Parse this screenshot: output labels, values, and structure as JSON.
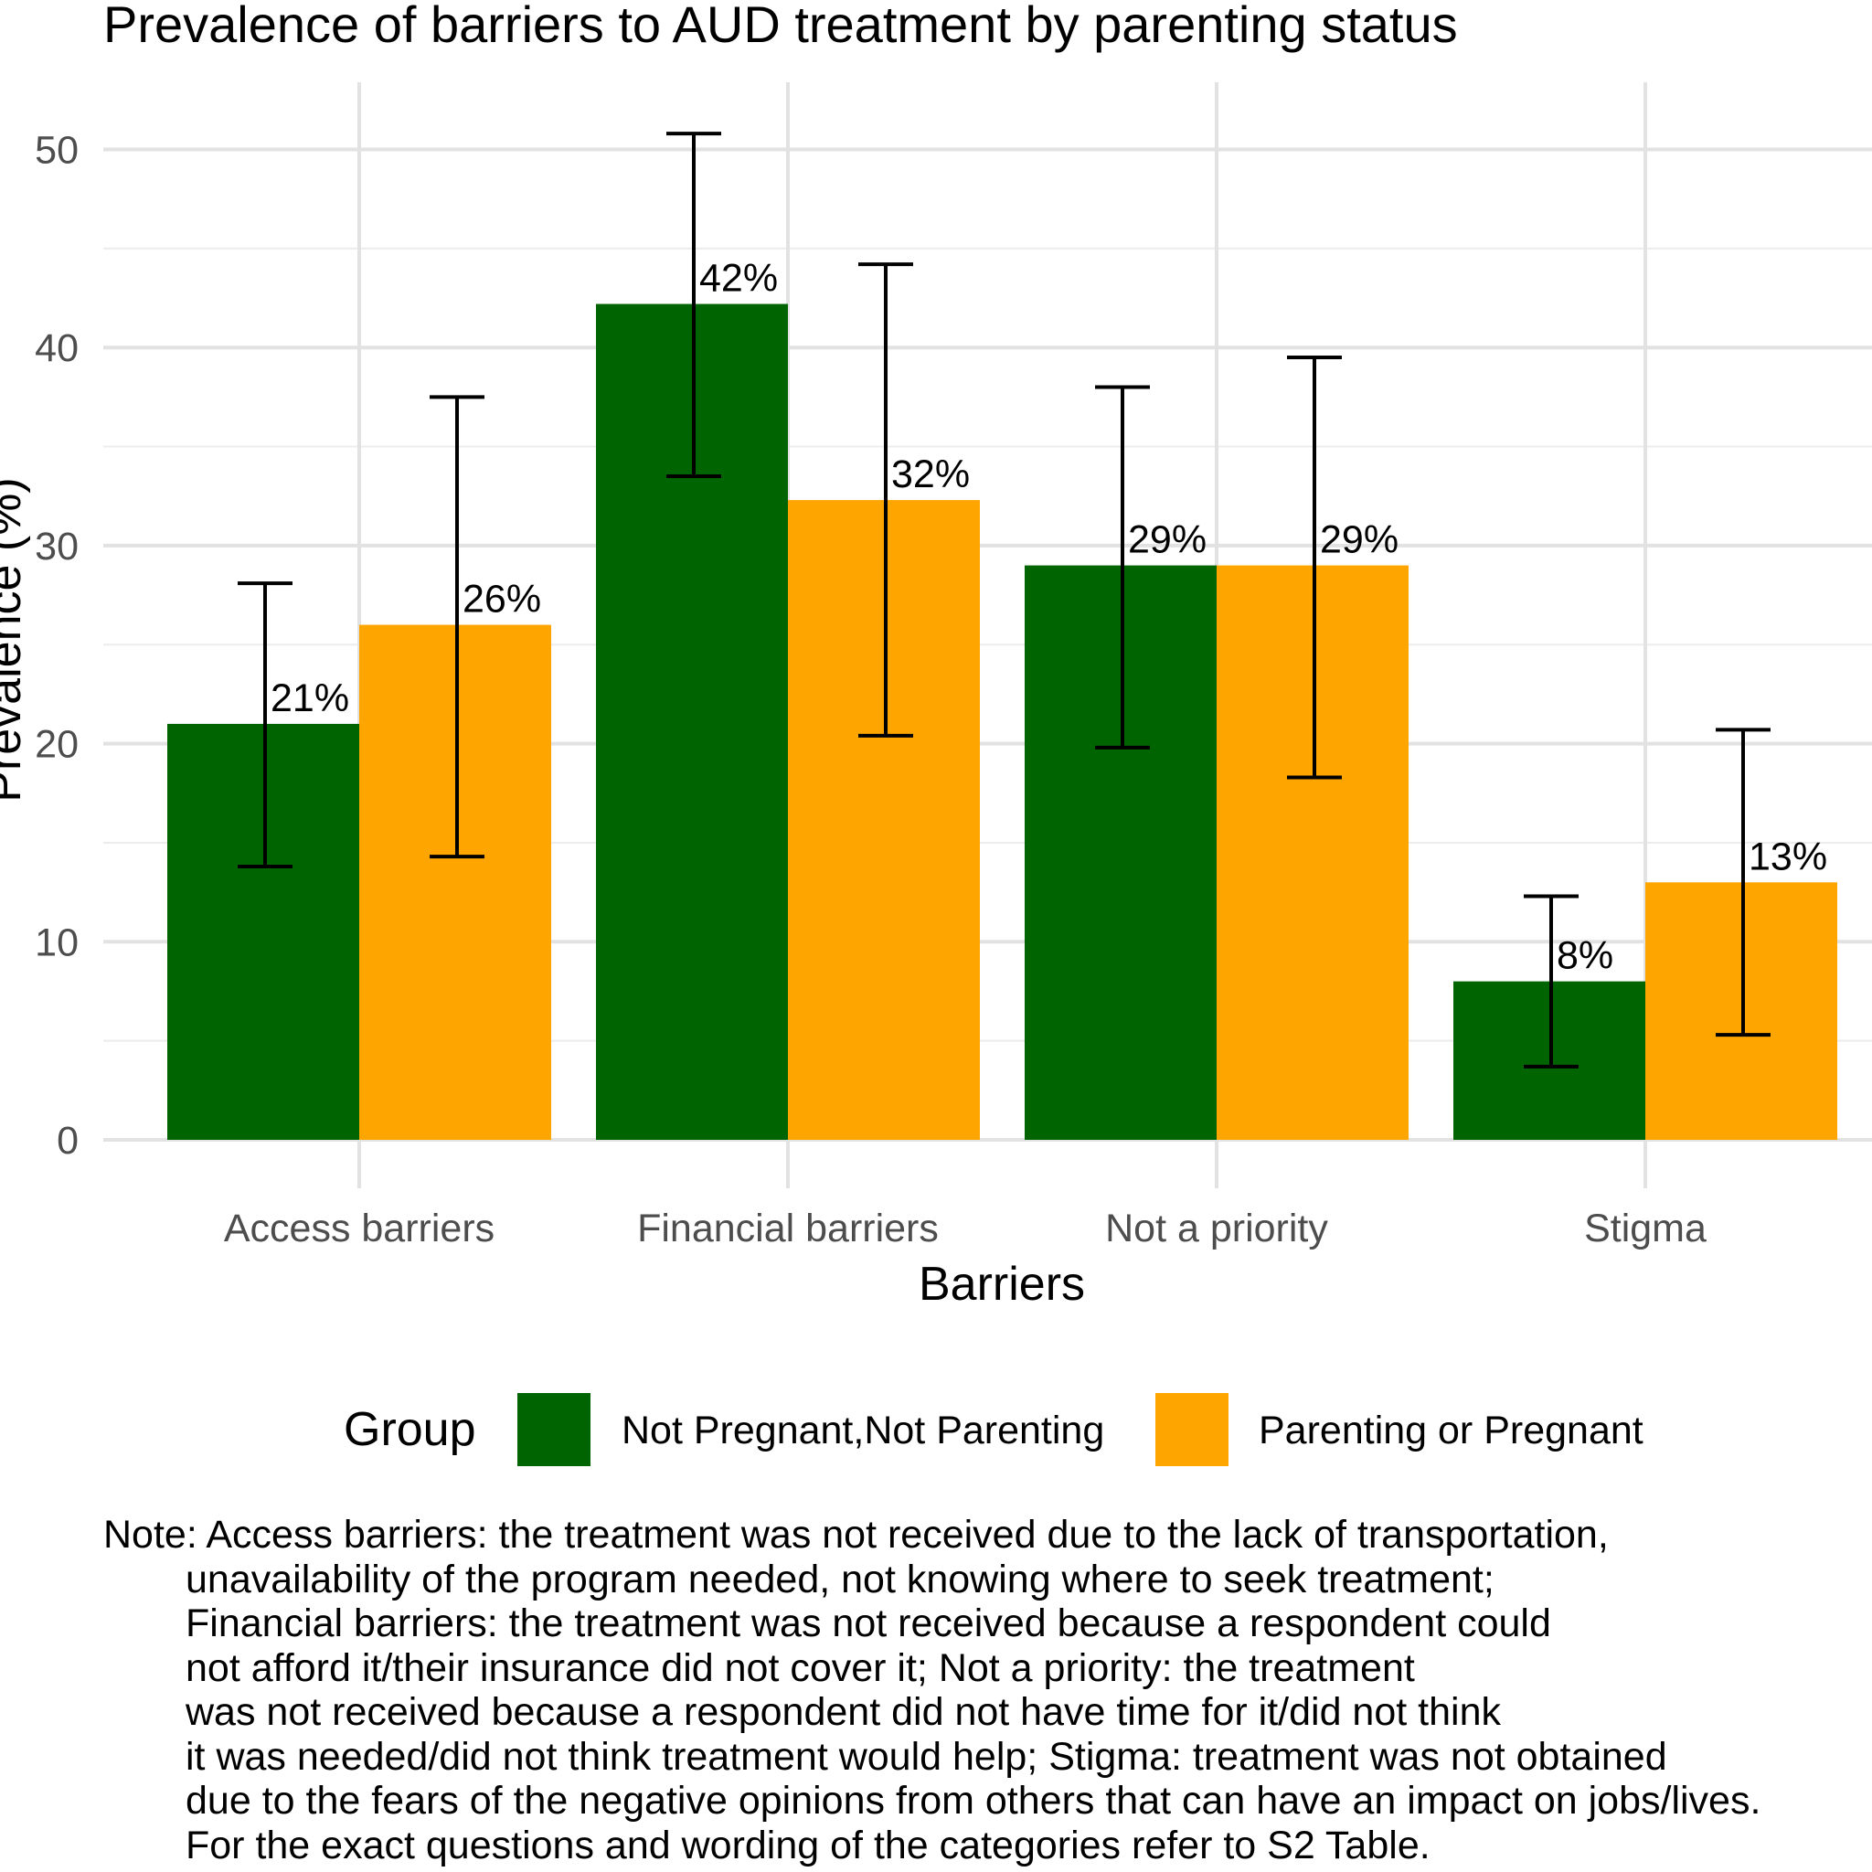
{
  "chart_data": {
    "type": "bar",
    "title": "Prevalence of barriers to AUD treatment by parenting status",
    "xlabel": "Barriers",
    "ylabel": "Prevalence (%)",
    "ylim": [
      0,
      52
    ],
    "y_ticks": [
      0,
      10,
      20,
      30,
      40,
      50
    ],
    "grid": true,
    "legend_position": "bottom",
    "legend_title": "Group",
    "categories": [
      "Access barriers",
      "Financial barriers",
      "Not a priority",
      "Stigma"
    ],
    "series": [
      {
        "name": "Not Pregnant,Not Parenting",
        "color": "#006400",
        "values": [
          21,
          42.2,
          29,
          8
        ],
        "labels": [
          "21%",
          "42%",
          "29%",
          "8%"
        ],
        "ci_lower": [
          13.8,
          33.5,
          19.8,
          3.7
        ],
        "ci_upper": [
          28.1,
          50.8,
          38.0,
          12.3
        ]
      },
      {
        "name": "Parenting or Pregnant",
        "color": "#FFA500",
        "values": [
          26,
          32.3,
          29,
          13
        ],
        "labels": [
          "26%",
          "32%",
          "29%",
          "13%"
        ],
        "ci_lower": [
          14.3,
          20.4,
          18.3,
          5.3
        ],
        "ci_upper": [
          37.5,
          44.2,
          39.5,
          20.7
        ]
      }
    ]
  },
  "note": [
    "Note: Access barriers: the treatment was not received due to the lack of transportation,",
    "unavailability of the program needed, not knowing where to seek treatment;",
    "Financial barriers: the treatment was not received because a respondent could",
    "not afford it/their insurance did not cover it; Not a priority: the treatment",
    "was not received because a respondent did not have time for it/did not think",
    "it was needed/did not think treatment would help; Stigma: treatment was not obtained",
    "due to the fears of the negative opinions from others that can have an impact on jobs/lives.",
    "For the exact questions and wording of the categories refer to S2 Table."
  ]
}
